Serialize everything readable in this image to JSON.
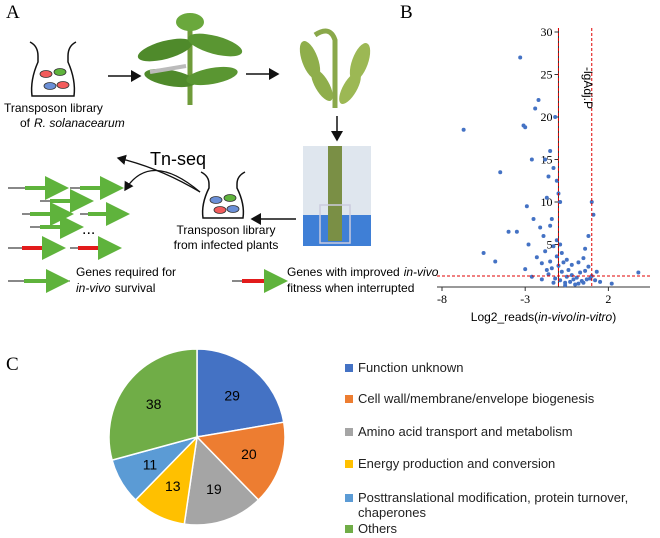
{
  "panels": {
    "a": "A",
    "b": "B",
    "c": "C"
  },
  "diagram": {
    "library_caption": {
      "line1": "Transposon library",
      "line2_prefix": "of",
      "line2_italic": "R. solanacearum"
    },
    "method": "Tn-seq",
    "ellipsis": "...",
    "infected_caption": {
      "line1": "Transposon library",
      "line2": "from infected plants"
    },
    "legend_green": {
      "line1": "Genes required for",
      "line2_italic": "in-vivo",
      "line2_rest": "survival"
    },
    "legend_red": {
      "line1_prefix": "Genes with improved",
      "line1_italic": "in-vivo",
      "line2": "fitness when interrupted"
    }
  },
  "chart_data": [
    {
      "type": "scatter",
      "x_label": {
        "prefix": "Log2_reads(",
        "italic1": "in-vivo",
        "sep": "/",
        "italic2": "in-vitro",
        "suffix": ")"
      },
      "y_label": "-lgAdj.P",
      "color": "#4472c4",
      "threshold_color": "#e00000",
      "thresholds": {
        "x": [
          -1,
          1
        ],
        "y": 1.3
      },
      "y_axis_at": -1,
      "xlim": [
        -8.3,
        4.5
      ],
      "ylim": [
        0,
        30
      ],
      "xticks": [
        -8,
        -3,
        2
      ],
      "yticks": [
        5,
        10,
        15,
        20,
        25,
        30
      ],
      "x": [
        -2.3,
        -2.0,
        -1.8,
        -1.6,
        -1.5,
        -1.4,
        -1.3,
        -1.2,
        -1.1,
        -1.0,
        -0.9,
        -0.8,
        -0.7,
        -0.6,
        -0.5,
        -0.4,
        -0.3,
        -0.2,
        -0.1,
        0,
        0.1,
        0.2,
        0.3,
        0.4,
        0.5,
        0.6,
        0.8,
        1.0,
        1.2,
        1.5,
        -2.0,
        -1.7,
        -1.3,
        -1.1,
        -0.8,
        -0.5,
        -0.2,
        0.2,
        0.5,
        0.9,
        -2.6,
        -3.0,
        -1.9,
        -1.5,
        -0.6,
        0.7,
        1.3,
        2.2,
        3.8,
        -0.9,
        -3.3,
        -6.7,
        -3.1,
        -3.0,
        -2.2,
        -2.4,
        -2.6,
        -4.5,
        -1.2,
        -1.5,
        -1.8,
        -1.3,
        -1.6,
        -1.0,
        1.0,
        1.1,
        0.8,
        -4.0,
        -5.5,
        -4.8,
        -3.5,
        -2.8,
        -2.5,
        -2.1,
        -1.4,
        -0.9,
        -2.9,
        -1.7,
        -1.1,
        0.6
      ],
      "y": [
        3.5,
        2.8,
        4.2,
        1.5,
        3.0,
        2.2,
        4.8,
        1.0,
        3.6,
        2.5,
        0.8,
        1.8,
        2.9,
        0.5,
        1.2,
        2.0,
        0.6,
        1.4,
        0.9,
        0.3,
        1.1,
        0.4,
        1.7,
        0.7,
        0.5,
        1.9,
        2.4,
        1.3,
        0.8,
        0.6,
        0.9,
        2.0,
        0.5,
        5.5,
        4.0,
        3.2,
        2.6,
        2.9,
        3.4,
        1.0,
        1.2,
        2.1,
        6.0,
        7.2,
        0.2,
        0.9,
        1.8,
        0.4,
        1.7,
        5.0,
        27,
        18.5,
        19,
        18.8,
        22,
        21,
        15,
        13.5,
        20,
        16,
        15,
        14,
        13,
        11,
        10,
        8.5,
        6,
        6.5,
        4,
        3,
        6.5,
        5,
        8,
        7,
        8,
        10,
        9.5,
        10.5,
        12.5,
        4.5
      ]
    },
    {
      "type": "pie",
      "categories": [
        "Function unknown",
        "Cell wall/membrane/envelope biogenesis",
        "Amino acid transport and metabolism",
        "Energy production and conversion",
        "Posttranslational modification, protein turnover, chaperones",
        "Others"
      ],
      "values": [
        29,
        20,
        19,
        13,
        11,
        38
      ],
      "colors": [
        "#4472c4",
        "#ed7d31",
        "#a5a5a5",
        "#ffc000",
        "#5b9bd5",
        "#70ad47"
      ]
    }
  ]
}
